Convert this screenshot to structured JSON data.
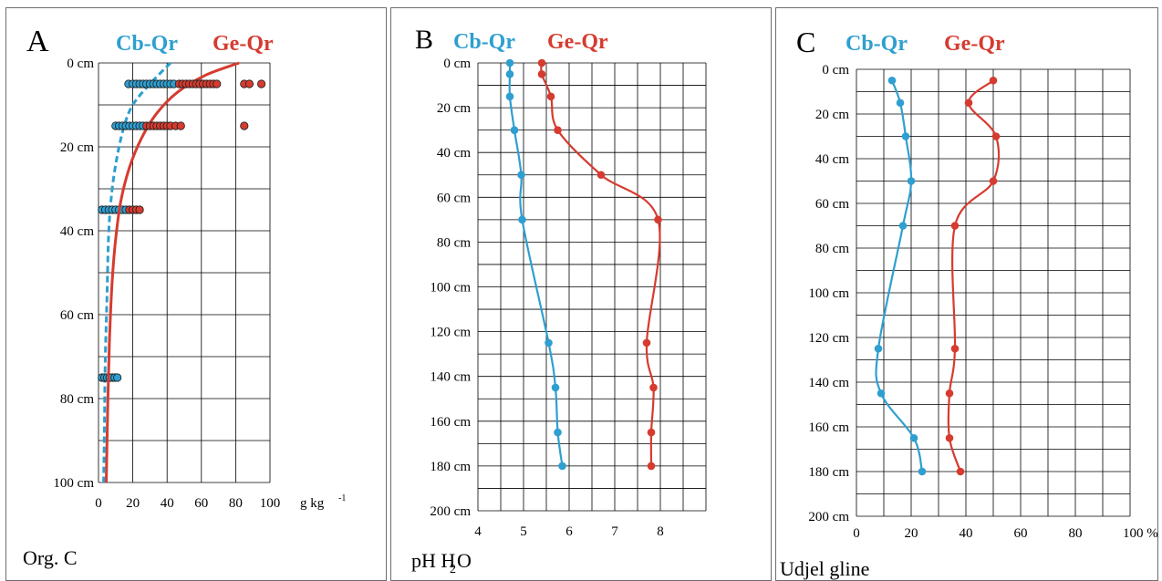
{
  "chart_data": [
    {
      "type": "line",
      "panel_letter": "A",
      "caption": "Org. C",
      "xlim": [
        0,
        100
      ],
      "ylim": [
        0,
        100
      ],
      "x_ticks": [
        0,
        20,
        40,
        60,
        80,
        100
      ],
      "y_ticks": [
        0,
        20,
        40,
        60,
        80,
        100
      ],
      "y_tick_labels": [
        "0 cm",
        "20 cm",
        "40 cm",
        "60 cm",
        "80 cm",
        "100 cm"
      ],
      "x_unit": "g kg",
      "x_unit_sup": "-1",
      "grid": true,
      "series": [
        {
          "name": "Cb-Qr",
          "color": "#2e9fd0",
          "line": "dashed",
          "curve_x": [
            42,
            30,
            20,
            15,
            11,
            8,
            6,
            5,
            4,
            3.5,
            3
          ],
          "curve_depth": [
            0,
            5,
            10,
            15,
            22,
            30,
            40,
            55,
            70,
            85,
            100
          ],
          "points": [
            {
              "x": 17.5,
              "depth": 5
            },
            {
              "x": 20,
              "depth": 5
            },
            {
              "x": 22,
              "depth": 5
            },
            {
              "x": 24,
              "depth": 5
            },
            {
              "x": 26,
              "depth": 5
            },
            {
              "x": 28,
              "depth": 5
            },
            {
              "x": 30,
              "depth": 5
            },
            {
              "x": 32,
              "depth": 5
            },
            {
              "x": 34,
              "depth": 5
            },
            {
              "x": 36,
              "depth": 5
            },
            {
              "x": 38,
              "depth": 5
            },
            {
              "x": 40,
              "depth": 5
            },
            {
              "x": 42,
              "depth": 5
            },
            {
              "x": 44,
              "depth": 5
            },
            {
              "x": 10,
              "depth": 15
            },
            {
              "x": 12,
              "depth": 15
            },
            {
              "x": 14,
              "depth": 15
            },
            {
              "x": 16,
              "depth": 15
            },
            {
              "x": 18,
              "depth": 15
            },
            {
              "x": 20,
              "depth": 15
            },
            {
              "x": 22,
              "depth": 15
            },
            {
              "x": 24,
              "depth": 15
            },
            {
              "x": 26,
              "depth": 15
            },
            {
              "x": 2,
              "depth": 35
            },
            {
              "x": 4,
              "depth": 35
            },
            {
              "x": 6,
              "depth": 35
            },
            {
              "x": 8,
              "depth": 35
            },
            {
              "x": 10,
              "depth": 35
            },
            {
              "x": 12,
              "depth": 35
            },
            {
              "x": 14,
              "depth": 35
            },
            {
              "x": 16,
              "depth": 35
            },
            {
              "x": 2,
              "depth": 75
            },
            {
              "x": 3.5,
              "depth": 75
            },
            {
              "x": 5,
              "depth": 75
            },
            {
              "x": 6.5,
              "depth": 75
            },
            {
              "x": 8,
              "depth": 75
            },
            {
              "x": 9.5,
              "depth": 75
            },
            {
              "x": 11,
              "depth": 75
            }
          ]
        },
        {
          "name": "Ge-Qr",
          "color": "#d63b2f",
          "line": "solid",
          "curve_x": [
            82,
            62,
            46,
            34,
            25,
            18,
            13,
            10,
            8,
            6.5,
            5.5,
            4.5
          ],
          "curve_depth": [
            0,
            3,
            7,
            12,
            18,
            25,
            33,
            42,
            52,
            65,
            80,
            100
          ],
          "points": [
            {
              "x": 47,
              "depth": 5
            },
            {
              "x": 49,
              "depth": 5
            },
            {
              "x": 51,
              "depth": 5
            },
            {
              "x": 53,
              "depth": 5
            },
            {
              "x": 55,
              "depth": 5
            },
            {
              "x": 57,
              "depth": 5
            },
            {
              "x": 59,
              "depth": 5
            },
            {
              "x": 61,
              "depth": 5
            },
            {
              "x": 63,
              "depth": 5
            },
            {
              "x": 65,
              "depth": 5
            },
            {
              "x": 67,
              "depth": 5
            },
            {
              "x": 69,
              "depth": 5
            },
            {
              "x": 85,
              "depth": 5
            },
            {
              "x": 88,
              "depth": 5
            },
            {
              "x": 95,
              "depth": 5
            },
            {
              "x": 28,
              "depth": 15
            },
            {
              "x": 30,
              "depth": 15
            },
            {
              "x": 32,
              "depth": 15
            },
            {
              "x": 34,
              "depth": 15
            },
            {
              "x": 36,
              "depth": 15
            },
            {
              "x": 38,
              "depth": 15
            },
            {
              "x": 40,
              "depth": 15
            },
            {
              "x": 42,
              "depth": 15
            },
            {
              "x": 45,
              "depth": 15
            },
            {
              "x": 48,
              "depth": 15
            },
            {
              "x": 85,
              "depth": 15
            },
            {
              "x": 18,
              "depth": 35
            },
            {
              "x": 20,
              "depth": 35
            },
            {
              "x": 22,
              "depth": 35
            },
            {
              "x": 24,
              "depth": 35
            }
          ]
        }
      ]
    },
    {
      "type": "line",
      "panel_letter": "B",
      "caption": "pH H",
      "caption_sub": "2",
      "caption_tail": "O",
      "xlim": [
        4,
        9
      ],
      "ylim": [
        0,
        200
      ],
      "x_ticks": [
        4,
        5,
        6,
        7,
        8
      ],
      "y_ticks": [
        0,
        20,
        40,
        60,
        80,
        100,
        120,
        140,
        160,
        180,
        200
      ],
      "y_tick_labels": [
        "0 cm",
        "20 cm",
        "40 cm",
        "60 cm",
        "80 cm",
        "100 cm",
        "120 cm",
        "140 cm",
        "160 cm",
        "180 cm",
        "200 cm"
      ],
      "grid": true,
      "series": [
        {
          "name": "Cb-Qr",
          "color": "#2e9fd0",
          "x": [
            4.7,
            4.7,
            4.7,
            4.8,
            4.95,
            4.97,
            5.55,
            5.7,
            5.75,
            5.85
          ],
          "depth": [
            0,
            5,
            15,
            30,
            50,
            70,
            125,
            145,
            165,
            180
          ]
        },
        {
          "name": "Ge-Qr",
          "color": "#d63b2f",
          "x": [
            5.4,
            5.4,
            5.6,
            5.75,
            6.7,
            7.95,
            7.7,
            7.85,
            7.8,
            7.8
          ],
          "depth": [
            0,
            5,
            15,
            30,
            50,
            70,
            125,
            145,
            165,
            180
          ]
        }
      ]
    },
    {
      "type": "line",
      "panel_letter": "C",
      "caption": "Udjel gline",
      "xlim": [
        0,
        100
      ],
      "ylim": [
        0,
        200
      ],
      "x_ticks": [
        0,
        20,
        40,
        60,
        80,
        100
      ],
      "x_tick_labels": [
        "0",
        "20",
        "40",
        "60",
        "80",
        "100 %"
      ],
      "y_ticks": [
        0,
        20,
        40,
        60,
        80,
        100,
        120,
        140,
        160,
        180,
        200
      ],
      "y_tick_labels": [
        "0 cm",
        "20 cm",
        "40 cm",
        "60 cm",
        "80 cm",
        "100 cm",
        "120 cm",
        "140 cm",
        "160 cm",
        "180 cm",
        "200 cm"
      ],
      "grid": true,
      "series": [
        {
          "name": "Cb-Qr",
          "color": "#2e9fd0",
          "x": [
            13,
            16,
            18,
            20,
            17,
            8,
            9,
            21,
            24
          ],
          "depth": [
            5,
            15,
            30,
            50,
            70,
            125,
            145,
            165,
            180
          ]
        },
        {
          "name": "Ge-Qr",
          "color": "#d63b2f",
          "x": [
            50,
            41,
            51,
            50,
            36,
            36,
            34,
            34,
            38
          ],
          "depth": [
            5,
            15,
            30,
            50,
            70,
            125,
            145,
            165,
            180
          ]
        }
      ]
    }
  ]
}
